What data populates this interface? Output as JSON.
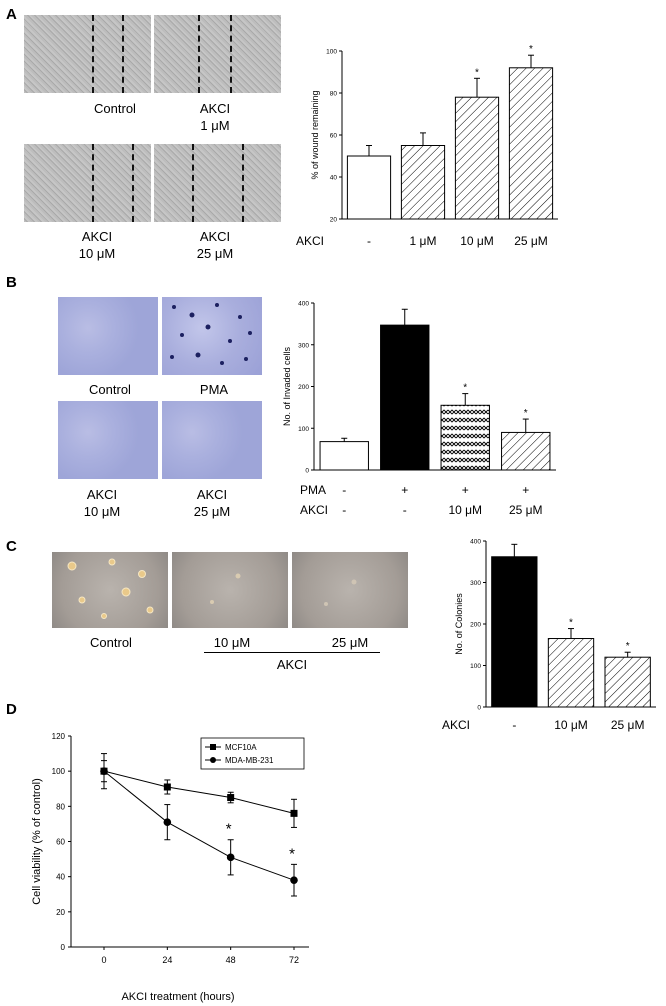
{
  "panels": {
    "A": {
      "letter": "A",
      "images": [
        {
          "label_line1": "Control",
          "label_line2": ""
        },
        {
          "label_line1": "AKCI",
          "label_line2": "1 μM"
        },
        {
          "label_line1": "AKCI",
          "label_line2": "10 μM"
        },
        {
          "label_line1": "AKCI",
          "label_line2": "25 μM"
        }
      ]
    },
    "B": {
      "letter": "B",
      "images": [
        {
          "label_line1": "Control",
          "label_line2": ""
        },
        {
          "label_line1": "PMA",
          "label_line2": ""
        },
        {
          "label_line1": "AKCI",
          "label_line2": "10 μM"
        },
        {
          "label_line1": "AKCI",
          "label_line2": "25 μM"
        }
      ]
    },
    "C": {
      "letter": "C",
      "images": [
        {
          "label": "Control"
        },
        {
          "label": "10 μM"
        },
        {
          "label": "25 μM"
        }
      ],
      "group_label": "AKCI"
    },
    "D": {
      "letter": "D"
    }
  },
  "chart_data": [
    {
      "type": "bar",
      "panel": "A",
      "ylabel": "% of wound remaining",
      "ylim": [
        20,
        100
      ],
      "yticks": [
        "20",
        "40",
        "60",
        "80",
        "100"
      ],
      "row_label": "AKCI",
      "categories": [
        "-",
        "1 μM",
        "10 μM",
        "25 μM"
      ],
      "values": [
        50,
        55,
        78,
        92
      ],
      "errors": [
        5,
        6,
        9,
        6
      ],
      "significance": [
        "",
        "",
        "*",
        "*"
      ],
      "fills": [
        "white",
        "hatch",
        "hatch",
        "hatch"
      ]
    },
    {
      "type": "bar",
      "panel": "B",
      "ylabel": "No. of Invaded cells",
      "ylim": [
        0,
        400
      ],
      "yticks": [
        "0",
        "100",
        "200",
        "300",
        "400"
      ],
      "row_labels": [
        "PMA",
        "AKCI"
      ],
      "rows": [
        [
          "-",
          "+",
          "+",
          "+"
        ],
        [
          "-",
          "-",
          "10 μM",
          "25 μM"
        ]
      ],
      "values": [
        68,
        347,
        155,
        90
      ],
      "errors": [
        8,
        38,
        28,
        32
      ],
      "significance": [
        "",
        "",
        "*",
        "*"
      ],
      "fills": [
        "white",
        "black",
        "wave",
        "hatch"
      ]
    },
    {
      "type": "bar",
      "panel": "C",
      "ylabel": "No. of Colonies",
      "ylim": [
        0,
        400
      ],
      "yticks": [
        "0",
        "100",
        "200",
        "300",
        "400"
      ],
      "row_label": "AKCI",
      "categories": [
        "-",
        "10 μM",
        "25 μM"
      ],
      "values": [
        362,
        165,
        120
      ],
      "errors": [
        30,
        24,
        12
      ],
      "significance": [
        "",
        "*",
        "*"
      ],
      "fills": [
        "black",
        "hatch",
        "hatch"
      ]
    },
    {
      "type": "line",
      "panel": "D",
      "xlabel": "AKCI treatment  (hours)",
      "ylabel": "Cell viability (% of control)",
      "ylim": [
        0,
        120
      ],
      "yticks": [
        "0",
        "20",
        "40",
        "60",
        "80",
        "100",
        "120"
      ],
      "x": [
        0,
        24,
        48,
        72
      ],
      "xticks": [
        "0",
        "24",
        "48",
        "72"
      ],
      "series": [
        {
          "name": "MCF10A",
          "marker": "square",
          "values": [
            100,
            91,
            85,
            76
          ],
          "errors": [
            6,
            4,
            3,
            8
          ]
        },
        {
          "name": "MDA-MB-231",
          "marker": "circle",
          "values": [
            100,
            71,
            51,
            38
          ],
          "errors": [
            10,
            10,
            10,
            9
          ]
        }
      ],
      "significance": {
        "series": "MDA-MB-231",
        "x": [
          48,
          72
        ],
        "symbol": "*"
      }
    }
  ]
}
